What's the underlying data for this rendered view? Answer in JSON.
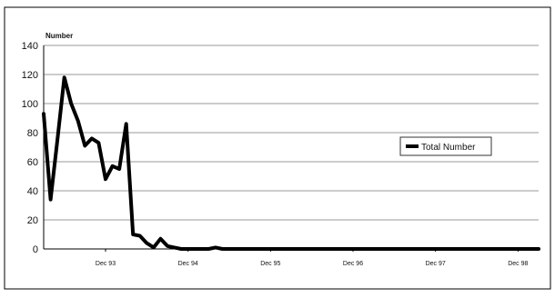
{
  "chart_data": {
    "type": "line",
    "title": "",
    "xlabel": "",
    "ylabel": "Number",
    "ylim": [
      0,
      140
    ],
    "yticks": [
      0,
      20,
      40,
      60,
      80,
      100,
      120,
      140
    ],
    "xticks": [
      "Dec 93",
      "Dec 94",
      "Dec 95",
      "Dec 96",
      "Dec 97",
      "Dec 98"
    ],
    "grid": true,
    "legend_placement": "right",
    "series": [
      {
        "name": "Total Number",
        "color": "#000000",
        "x": [
          "Mar 93",
          "Apr 93",
          "May 93",
          "Jun 93",
          "Jul 93",
          "Aug 93",
          "Sep 93",
          "Oct 93",
          "Nov 93",
          "Dec 93",
          "Jan 94",
          "Feb 94",
          "Mar 94",
          "Apr 94",
          "May 94",
          "Jun 94",
          "Jul 94",
          "Aug 94",
          "Sep 94",
          "Oct 94",
          "Nov 94",
          "Dec 94",
          "Jan 95",
          "Feb 95",
          "Mar 95",
          "Apr 95",
          "May 95",
          "Jun 95",
          "Jul 95",
          "Aug 95",
          "Sep 95",
          "Oct 95",
          "Nov 95",
          "Dec 95",
          "Jun 96",
          "Dec 96",
          "Jun 97",
          "Dec 97",
          "Jun 98",
          "Dec 98",
          "Mar 99"
        ],
        "values": [
          93,
          34,
          75,
          118,
          100,
          88,
          71,
          76,
          73,
          48,
          57,
          55,
          86,
          10,
          9,
          4,
          1,
          7,
          2,
          1,
          0,
          0,
          0,
          0,
          0,
          1,
          0,
          0,
          0,
          0,
          0,
          0,
          0,
          0,
          0,
          0,
          0,
          0,
          0,
          0,
          0
        ]
      }
    ]
  }
}
